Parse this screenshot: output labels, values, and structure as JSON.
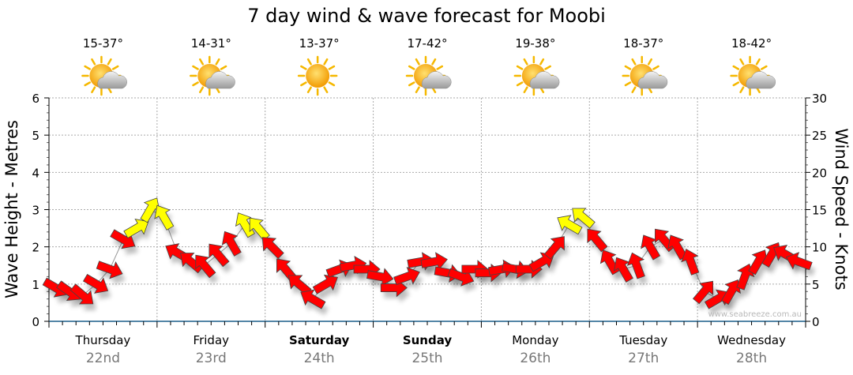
{
  "chart_data": {
    "type": "line",
    "title": "7 day wind & wave forecast for Moobi",
    "ylabel": "Wave Height - Metres",
    "y2label": "Wind Speed - Knots",
    "ylim": [
      0,
      6
    ],
    "y2lim": [
      0,
      30
    ],
    "yticks": [
      "0",
      "1",
      "2",
      "3",
      "4",
      "5",
      "6"
    ],
    "y2ticks": [
      "0",
      "5",
      "10",
      "15",
      "20",
      "25",
      "30"
    ],
    "grid": true,
    "watermark": "www.seabreeze.com.au",
    "days": [
      {
        "name": "Thursday",
        "date": "22nd",
        "temp": "15-37°",
        "icon": "sun-cloud-icon",
        "weekend": false
      },
      {
        "name": "Friday",
        "date": "23rd",
        "temp": "14-31°",
        "icon": "sun-cloud-icon",
        "weekend": false
      },
      {
        "name": "Saturday",
        "date": "24th",
        "temp": "13-37°",
        "icon": "sun-icon",
        "weekend": true
      },
      {
        "name": "Sunday",
        "date": "25th",
        "temp": "17-42°",
        "icon": "sun-cloud-icon",
        "weekend": true
      },
      {
        "name": "Monday",
        "date": "26th",
        "temp": "19-38°",
        "icon": "sun-cloud-icon",
        "weekend": false
      },
      {
        "name": "Tuesday",
        "date": "27th",
        "temp": "18-37°",
        "icon": "sun-cloud-icon",
        "weekend": false
      },
      {
        "name": "Wednesday",
        "date": "28th",
        "temp": "18-42°",
        "icon": "sun-cloud-icon",
        "weekend": false
      }
    ],
    "wind_series": {
      "name": "Wind speed (knots), every 3 hours",
      "strong_threshold": 12,
      "colors": {
        "normal": "#ff0000",
        "strong": "#ffff00"
      },
      "speed": [
        4.5,
        4,
        3.5,
        5,
        7,
        11,
        12.5,
        15,
        14,
        9.2,
        8,
        7.5,
        9,
        10.5,
        13,
        12.5,
        10,
        7,
        5,
        3,
        5,
        7,
        7.5,
        7,
        6,
        4.5,
        6,
        8,
        8,
        6.5,
        6,
        7,
        6.5,
        7,
        7,
        7,
        8,
        10,
        13,
        14,
        11,
        8,
        7,
        7.5,
        10,
        11,
        10,
        8,
        4,
        3,
        4,
        6,
        8,
        9,
        9,
        8
      ],
      "direction": [
        120,
        125,
        130,
        120,
        110,
        120,
        60,
        30,
        330,
        300,
        310,
        320,
        320,
        330,
        330,
        320,
        315,
        320,
        310,
        300,
        60,
        70,
        80,
        90,
        100,
        90,
        70,
        80,
        80,
        100,
        110,
        90,
        90,
        80,
        100,
        90,
        60,
        40,
        300,
        310,
        320,
        330,
        330,
        340,
        330,
        320,
        330,
        340,
        40,
        60,
        30,
        20,
        30,
        30,
        300,
        290
      ]
    }
  }
}
